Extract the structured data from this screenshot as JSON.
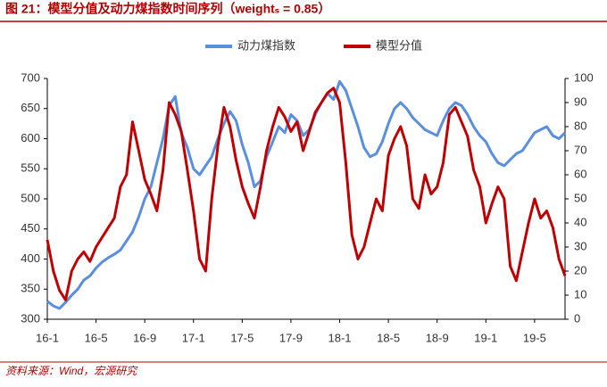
{
  "chart_data": {
    "type": "line",
    "title": "图 21：模型分值及动力煤指数时间序列（weightₛ = 0.85）",
    "source": "资料来源：Wind，宏源研究",
    "categories": [
      "16-1",
      null,
      null,
      null,
      null,
      null,
      null,
      null,
      "16-5",
      null,
      null,
      null,
      null,
      null,
      null,
      null,
      "16-9",
      null,
      null,
      null,
      null,
      null,
      null,
      null,
      "17-1",
      null,
      null,
      null,
      null,
      null,
      null,
      null,
      "17-5",
      null,
      null,
      null,
      null,
      null,
      null,
      null,
      "17-9",
      null,
      null,
      null,
      null,
      null,
      null,
      null,
      "18-1",
      null,
      null,
      null,
      null,
      null,
      null,
      null,
      "18-5",
      null,
      null,
      null,
      null,
      null,
      null,
      null,
      "18-9",
      null,
      null,
      null,
      null,
      null,
      null,
      null,
      "19-1",
      null,
      null,
      null,
      null,
      null,
      null,
      null,
      "19-5",
      null,
      null,
      null,
      null,
      null
    ],
    "series": [
      {
        "name": "动力煤指数",
        "color": "#5a8fe0",
        "axis": "y",
        "values": [
          330,
          322,
          318,
          328,
          340,
          350,
          365,
          372,
          385,
          395,
          402,
          408,
          415,
          430,
          445,
          470,
          500,
          520,
          560,
          600,
          655,
          670,
          610,
          585,
          550,
          540,
          555,
          570,
          600,
          625,
          645,
          630,
          590,
          560,
          520,
          530,
          570,
          595,
          620,
          610,
          640,
          630,
          605,
          615,
          640,
          660,
          675,
          665,
          695,
          680,
          650,
          620,
          585,
          570,
          575,
          595,
          625,
          650,
          660,
          650,
          635,
          625,
          615,
          610,
          605,
          630,
          650,
          660,
          655,
          640,
          620,
          605,
          595,
          575,
          560,
          555,
          565,
          575,
          580,
          595,
          610,
          615,
          620,
          605,
          600,
          610
        ]
      },
      {
        "name": "模型分值",
        "color": "#c00000",
        "axis": "y2",
        "values": [
          33,
          20,
          12,
          8,
          20,
          25,
          28,
          24,
          30,
          34,
          38,
          42,
          55,
          60,
          82,
          70,
          58,
          52,
          45,
          62,
          90,
          85,
          78,
          62,
          45,
          25,
          20,
          50,
          72,
          88,
          80,
          66,
          55,
          48,
          42,
          55,
          70,
          80,
          88,
          84,
          78,
          82,
          70,
          78,
          86,
          90,
          94,
          96,
          90,
          65,
          35,
          25,
          30,
          40,
          50,
          45,
          68,
          75,
          80,
          72,
          50,
          46,
          60,
          52,
          55,
          65,
          85,
          88,
          82,
          76,
          62,
          55,
          40,
          48,
          55,
          50,
          22,
          16,
          28,
          40,
          50,
          42,
          45,
          38,
          25,
          18
        ]
      }
    ],
    "ylim": [
      300,
      700
    ],
    "yticks": [
      300,
      350,
      400,
      450,
      500,
      550,
      600,
      650,
      700
    ],
    "y2lim": [
      0,
      100
    ],
    "y2ticks": [
      0,
      10,
      20,
      30,
      40,
      50,
      60,
      70,
      80,
      90,
      100
    ],
    "grid": false
  }
}
